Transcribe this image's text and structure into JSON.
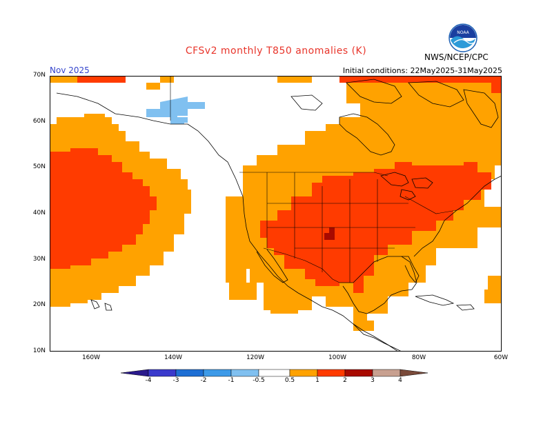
{
  "header": {
    "title": "CFSv2 monthly T850 anomalies (K)",
    "month": "Nov 2025",
    "initial_conditions": "Initial conditions: 22May2025-31May2025",
    "agency": "NWS/NCEP/CPC",
    "logo_text": "NOAA"
  },
  "axes": {
    "lat_labels": [
      "70N",
      "60N",
      "50N",
      "40N",
      "30N",
      "20N",
      "10N"
    ],
    "lon_labels": [
      "160W",
      "140W",
      "120W",
      "100W",
      "80W",
      "60W"
    ]
  },
  "legend": {
    "labels": [
      "-4",
      "-3",
      "-2",
      "-1",
      "-0.5",
      "0.5",
      "1",
      "2",
      "3",
      "4"
    ],
    "colors": {
      "lt_neg4": "#2a1a8c",
      "neg4_neg3": "#3a3acc",
      "neg3_neg2": "#1e6fd4",
      "neg2_neg1": "#3d9ae8",
      "neg1_neg05": "#80c0f0",
      "neutral": "#ffffff",
      "p05_p1": "#ffa200",
      "p1_p2": "#ff3b00",
      "p2_p3": "#a80a00",
      "p3_p4": "#c8a090",
      "gt_p4": "#7a4a3a"
    }
  },
  "map_colors": {
    "orange": "#ffa200",
    "red": "#ff3b00",
    "darkred": "#a80a00",
    "lightblue": "#80c0f0"
  }
}
